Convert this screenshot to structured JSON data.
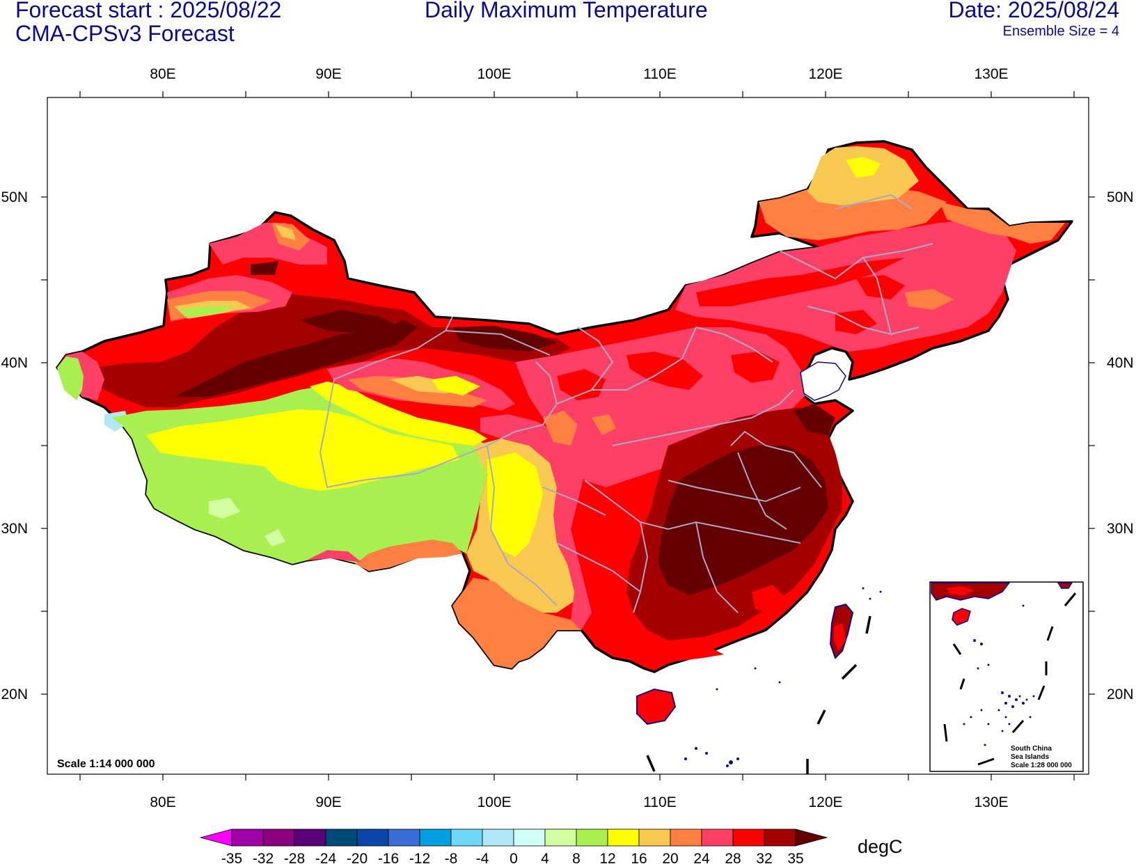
{
  "header": {
    "forecast_start": "Forecast start : 2025/08/22",
    "model": "CMA-CPSv3 Forecast",
    "title": "Daily Maximum Temperature",
    "date": "Date: 2025/08/24",
    "ensemble": "Ensemble Size = 4"
  },
  "axes": {
    "lon_ticks": [
      "80E",
      "90E",
      "100E",
      "110E",
      "120E",
      "130E"
    ],
    "lat_ticks": [
      "50N",
      "40N",
      "30N",
      "20N"
    ]
  },
  "scale_label": "Scale 1:14 000 000",
  "inset": {
    "line1": "South China",
    "line2": "Sea Islands",
    "line3": "Scale 1:28 000 000"
  },
  "colorbar": {
    "unit": "degC",
    "labels": [
      "-35",
      "-32",
      "-28",
      "-24",
      "-20",
      "-16",
      "-12",
      "-8",
      "-4",
      "0",
      "4",
      "8",
      "12",
      "16",
      "20",
      "24",
      "28",
      "32",
      "35"
    ],
    "colors": [
      "#ff00ff",
      "#a000a8",
      "#8a007e",
      "#5a0078",
      "#004a78",
      "#0a46a8",
      "#3a6ed6",
      "#00a0e0",
      "#6ed8f6",
      "#b0e8f6",
      "#d0fff8",
      "#d2ffa0",
      "#a8f050",
      "#ffff00",
      "#f8c850",
      "#ff8040",
      "#ff4066",
      "#ff0000",
      "#a40000",
      "#640000"
    ]
  }
}
